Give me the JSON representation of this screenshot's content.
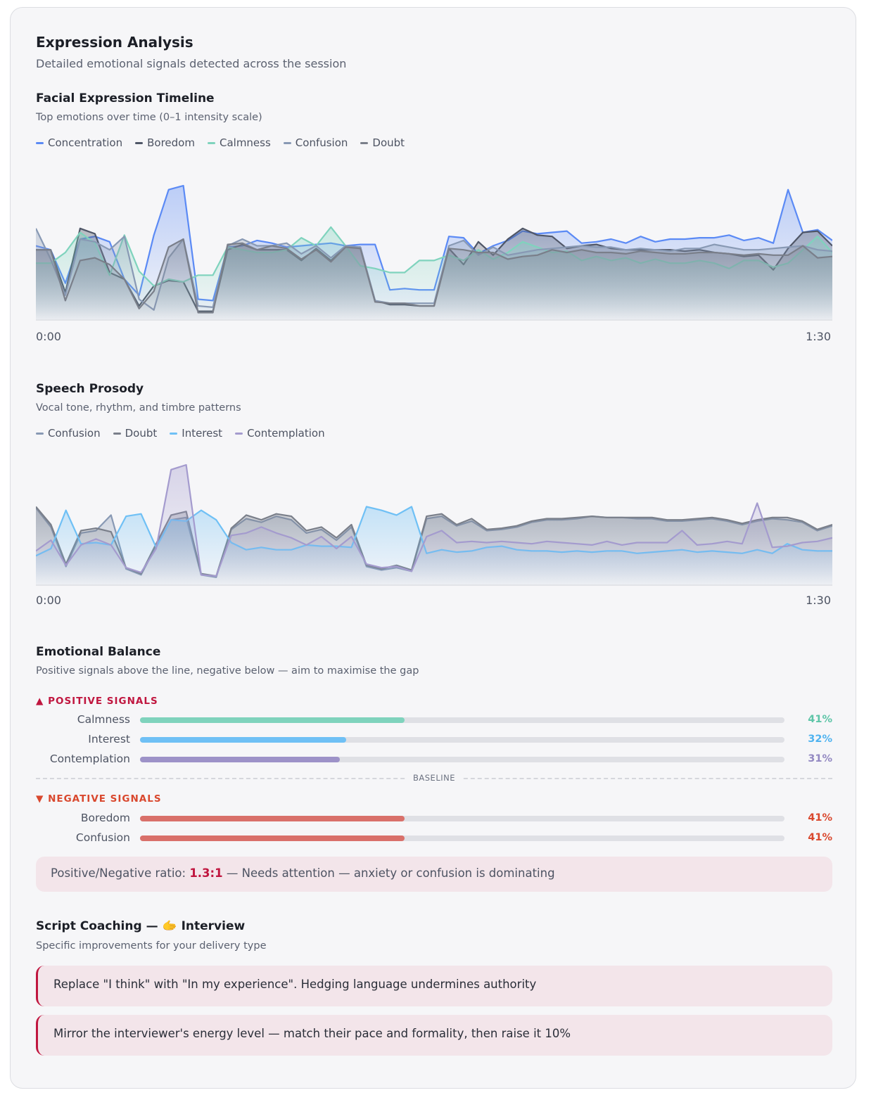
{
  "header": {
    "title": "Expression Analysis",
    "subtitle": "Detailed emotional signals detected across the session"
  },
  "facial": {
    "title": "Facial Expression Timeline",
    "subtitle": "Top emotions over time (0–1 intensity scale)",
    "legend": [
      "Concentration",
      "Boredom",
      "Calmness",
      "Confusion",
      "Doubt"
    ],
    "colors": [
      "#5b8af5",
      "#4f5667",
      "#7fd3bd",
      "#8899b4",
      "#7a7f8a"
    ],
    "x_start": "0:00",
    "x_end": "1:30"
  },
  "prosody": {
    "title": "Speech Prosody",
    "subtitle": "Vocal tone, rhythm, and timbre patterns",
    "legend": [
      "Confusion",
      "Doubt",
      "Interest",
      "Contemplation"
    ],
    "colors": [
      "#8899b4",
      "#7a7f8a",
      "#6fc0f5",
      "#a49bce"
    ],
    "x_start": "0:00",
    "x_end": "1:30"
  },
  "balance": {
    "title": "Emotional Balance",
    "subtitle": "Positive signals above the line, negative below — aim to maximise the gap",
    "positive_label": "▲ POSITIVE SIGNALS",
    "negative_label": "▼ NEGATIVE SIGNALS",
    "positive_color": "#c0163f",
    "negative_color": "#d9482e",
    "baseline_label": "BASELINE",
    "positive": [
      {
        "label": "Calmness",
        "pct": "41%",
        "value": 0.41,
        "color": "#7fd3bd",
        "text_color": "#5ec5a8"
      },
      {
        "label": "Interest",
        "pct": "32%",
        "value": 0.32,
        "color": "#6fc0f5",
        "text_color": "#4fb3f0"
      },
      {
        "label": "Contemplation",
        "pct": "31%",
        "value": 0.31,
        "color": "#9d92c8",
        "text_color": "#9389c2"
      }
    ],
    "negative": [
      {
        "label": "Boredom",
        "pct": "41%",
        "value": 0.41,
        "color": "#d9706a",
        "text_color": "#d9482e"
      },
      {
        "label": "Confusion",
        "pct": "41%",
        "value": 0.41,
        "color": "#d9706a",
        "text_color": "#d9482e"
      }
    ],
    "ratio_prefix": "Positive/Negative ratio: ",
    "ratio_value": "1.3:1",
    "ratio_suffix": " — Needs attention — anxiety or confusion is dominating"
  },
  "coaching": {
    "title": "Script Coaching — 🫱 Interview",
    "subtitle": "Specific improvements for your delivery type",
    "tips": [
      "Replace \"I think\" with \"In my experience\". Hedging language undermines authority",
      "Mirror the interviewer's energy level — match their pace and formality, then raise it 10%"
    ]
  },
  "chart_data": [
    {
      "type": "area",
      "title": "Facial Expression Timeline",
      "x_range": [
        "0:00",
        "1:30"
      ],
      "ylim": [
        0,
        1
      ],
      "series": [
        {
          "name": "Concentration",
          "values": [
            0.55,
            0.52,
            0.27,
            0.6,
            0.62,
            0.58,
            0.3,
            0.18,
            0.63,
            0.97,
            1.0,
            0.15,
            0.14,
            0.54,
            0.55,
            0.59,
            0.57,
            0.54,
            0.55,
            0.56,
            0.57,
            0.55,
            0.56,
            0.56,
            0.22,
            0.23,
            0.22,
            0.22,
            0.62,
            0.61,
            0.49,
            0.55,
            0.59,
            0.66,
            0.64,
            0.65,
            0.66,
            0.57,
            0.58,
            0.6,
            0.57,
            0.62,
            0.58,
            0.6,
            0.6,
            0.61,
            0.61,
            0.63,
            0.59,
            0.61,
            0.57,
            0.97,
            0.65,
            0.67,
            0.59
          ]
        },
        {
          "name": "Boredom",
          "values": [
            0.52,
            0.52,
            0.2,
            0.68,
            0.64,
            0.35,
            0.3,
            0.1,
            0.25,
            0.29,
            0.28,
            0.06,
            0.06,
            0.52,
            0.56,
            0.52,
            0.52,
            0.52,
            0.44,
            0.53,
            0.44,
            0.54,
            0.54,
            0.14,
            0.11,
            0.11,
            0.1,
            0.1,
            0.53,
            0.41,
            0.58,
            0.48,
            0.6,
            0.68,
            0.63,
            0.62,
            0.53,
            0.55,
            0.56,
            0.53,
            0.52,
            0.52,
            0.52,
            0.52,
            0.51,
            0.52,
            0.5,
            0.49,
            0.47,
            0.48,
            0.37,
            0.53,
            0.65,
            0.66,
            0.55
          ]
        },
        {
          "name": "Calmness",
          "values": [
            0.42,
            0.42,
            0.5,
            0.65,
            0.57,
            0.33,
            0.63,
            0.36,
            0.25,
            0.3,
            0.28,
            0.33,
            0.33,
            0.54,
            0.52,
            0.5,
            0.5,
            0.52,
            0.61,
            0.55,
            0.69,
            0.55,
            0.4,
            0.38,
            0.35,
            0.35,
            0.44,
            0.44,
            0.48,
            0.44,
            0.52,
            0.45,
            0.5,
            0.58,
            0.54,
            0.5,
            0.51,
            0.44,
            0.47,
            0.44,
            0.46,
            0.42,
            0.45,
            0.42,
            0.42,
            0.44,
            0.42,
            0.38,
            0.44,
            0.44,
            0.39,
            0.42,
            0.52,
            0.62,
            0.5
          ]
        },
        {
          "name": "Confusion",
          "values": [
            0.68,
            0.45,
            0.18,
            0.6,
            0.58,
            0.52,
            0.62,
            0.15,
            0.07,
            0.46,
            0.6,
            0.1,
            0.09,
            0.55,
            0.6,
            0.55,
            0.55,
            0.57,
            0.49,
            0.55,
            0.46,
            0.55,
            0.54,
            0.14,
            0.12,
            0.12,
            0.12,
            0.12,
            0.55,
            0.59,
            0.48,
            0.54,
            0.48,
            0.5,
            0.52,
            0.53,
            0.54,
            0.55,
            0.54,
            0.54,
            0.52,
            0.53,
            0.52,
            0.51,
            0.53,
            0.53,
            0.56,
            0.54,
            0.52,
            0.52,
            0.53,
            0.54,
            0.55,
            0.52,
            0.51
          ]
        },
        {
          "name": "Doubt",
          "values": [
            0.52,
            0.52,
            0.14,
            0.44,
            0.46,
            0.41,
            0.3,
            0.08,
            0.21,
            0.54,
            0.6,
            0.05,
            0.05,
            0.56,
            0.57,
            0.52,
            0.55,
            0.53,
            0.45,
            0.52,
            0.43,
            0.54,
            0.53,
            0.13,
            0.12,
            0.12,
            0.1,
            0.1,
            0.53,
            0.52,
            0.5,
            0.5,
            0.45,
            0.47,
            0.48,
            0.52,
            0.5,
            0.52,
            0.5,
            0.5,
            0.49,
            0.51,
            0.5,
            0.49,
            0.49,
            0.5,
            0.5,
            0.49,
            0.48,
            0.49,
            0.48,
            0.48,
            0.55,
            0.46,
            0.47
          ]
        }
      ]
    },
    {
      "type": "area",
      "title": "Speech Prosody",
      "x_range": [
        "0:00",
        "1:30"
      ],
      "ylim": [
        0,
        1
      ],
      "series": [
        {
          "name": "Confusion",
          "values": [
            0.64,
            0.48,
            0.15,
            0.43,
            0.45,
            0.58,
            0.13,
            0.08,
            0.32,
            0.54,
            0.56,
            0.08,
            0.06,
            0.46,
            0.55,
            0.52,
            0.57,
            0.54,
            0.43,
            0.46,
            0.37,
            0.48,
            0.15,
            0.12,
            0.14,
            0.11,
            0.55,
            0.57,
            0.49,
            0.53,
            0.45,
            0.46,
            0.48,
            0.52,
            0.54,
            0.54,
            0.55,
            0.57,
            0.56,
            0.56,
            0.55,
            0.55,
            0.53,
            0.53,
            0.54,
            0.55,
            0.53,
            0.5,
            0.53,
            0.55,
            0.54,
            0.52,
            0.45,
            0.49
          ]
        },
        {
          "name": "Doubt",
          "values": [
            0.65,
            0.5,
            0.17,
            0.45,
            0.47,
            0.44,
            0.14,
            0.09,
            0.34,
            0.58,
            0.61,
            0.09,
            0.07,
            0.47,
            0.58,
            0.54,
            0.59,
            0.57,
            0.45,
            0.48,
            0.39,
            0.5,
            0.16,
            0.13,
            0.16,
            0.12,
            0.57,
            0.59,
            0.5,
            0.55,
            0.46,
            0.47,
            0.49,
            0.53,
            0.55,
            0.55,
            0.56,
            0.57,
            0.56,
            0.56,
            0.56,
            0.56,
            0.54,
            0.54,
            0.55,
            0.56,
            0.54,
            0.51,
            0.54,
            0.56,
            0.56,
            0.53,
            0.46,
            0.5
          ]
        },
        {
          "name": "Interest",
          "values": [
            0.24,
            0.3,
            0.62,
            0.34,
            0.35,
            0.33,
            0.57,
            0.59,
            0.31,
            0.54,
            0.53,
            0.62,
            0.54,
            0.35,
            0.29,
            0.31,
            0.29,
            0.29,
            0.33,
            0.32,
            0.32,
            0.31,
            0.65,
            0.62,
            0.58,
            0.65,
            0.26,
            0.29,
            0.27,
            0.28,
            0.31,
            0.32,
            0.29,
            0.28,
            0.28,
            0.27,
            0.28,
            0.27,
            0.28,
            0.28,
            0.26,
            0.27,
            0.28,
            0.29,
            0.27,
            0.28,
            0.27,
            0.26,
            0.29,
            0.26,
            0.34,
            0.29,
            0.28,
            0.28
          ]
        },
        {
          "name": "Contemplation",
          "values": [
            0.28,
            0.37,
            0.16,
            0.33,
            0.38,
            0.33,
            0.14,
            0.1,
            0.3,
            0.96,
            1.0,
            0.08,
            0.07,
            0.41,
            0.43,
            0.48,
            0.43,
            0.39,
            0.33,
            0.4,
            0.3,
            0.4,
            0.17,
            0.14,
            0.15,
            0.11,
            0.4,
            0.45,
            0.35,
            0.36,
            0.35,
            0.36,
            0.35,
            0.34,
            0.36,
            0.35,
            0.34,
            0.33,
            0.36,
            0.33,
            0.35,
            0.35,
            0.35,
            0.45,
            0.33,
            0.34,
            0.36,
            0.34,
            0.68,
            0.31,
            0.32,
            0.35,
            0.36,
            0.39
          ]
        }
      ]
    },
    {
      "type": "bar",
      "title": "Emotional Balance",
      "categories": [
        "Calmness",
        "Interest",
        "Contemplation",
        "Boredom",
        "Confusion"
      ],
      "values": [
        41,
        32,
        31,
        41,
        41
      ],
      "xlim": [
        0,
        100
      ]
    }
  ]
}
